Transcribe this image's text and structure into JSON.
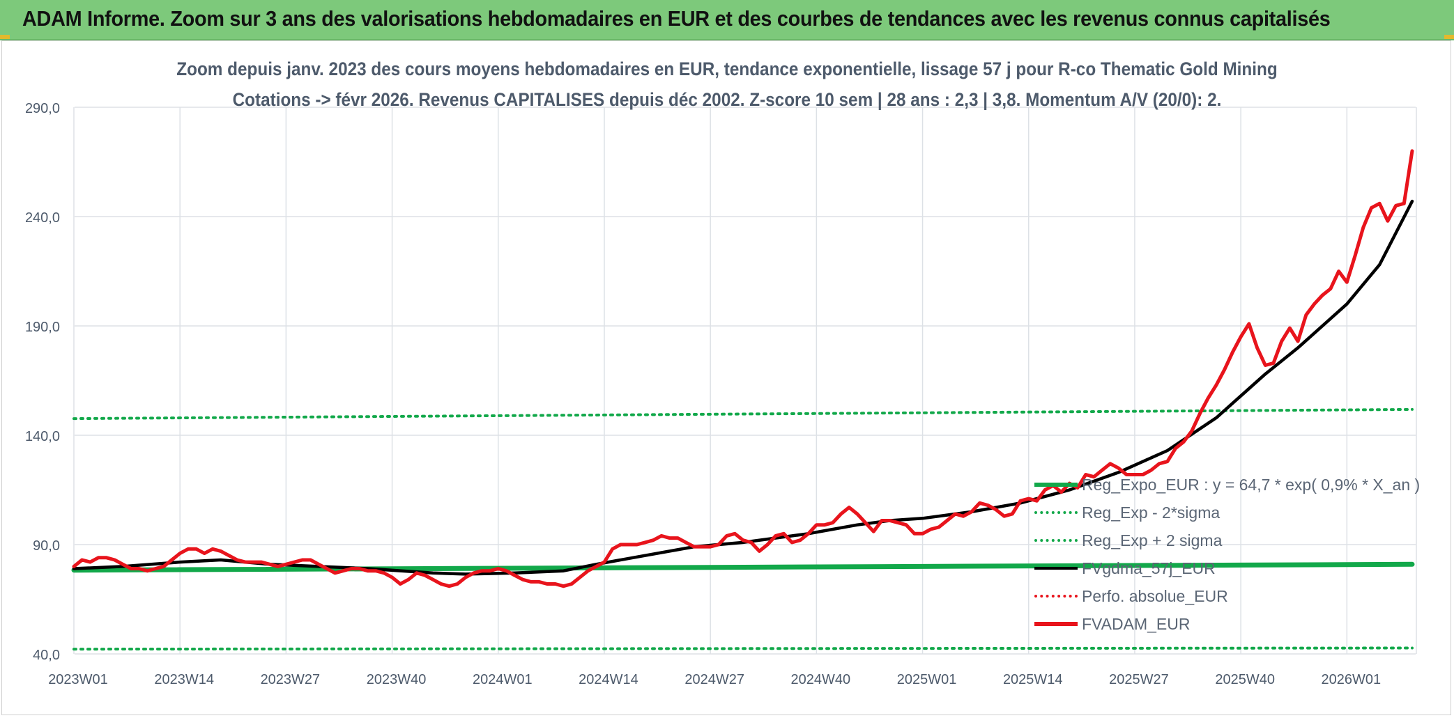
{
  "header": {
    "title": "ADAM Informe. Zoom sur 3 ans des valorisations hebdomadaires en EUR et des courbes de tendances avec les revenus connus capitalisés"
  },
  "colors": {
    "header_bg": "#7dc97b",
    "grid": "#dde1e6",
    "green": "#12a84a",
    "black": "#000000",
    "red": "#e8141c",
    "axis_text": "#4d5a6b"
  },
  "chart_data": {
    "type": "line",
    "title_line1": "Zoom depuis janv. 2023 des cours moyens hebdomadaires en EUR, tendance exponentielle, lissage 57 j pour R-co Thematic Gold Mining",
    "title_line2": "Cotations -> févr 2026. Revenus CAPITALISES depuis déc 2002. Z-score 10 sem | 28 ans : 2,3 | 3,8. Momentum A/V (20/0): 2.",
    "x_tick_labels": [
      "2023W01",
      "2023W14",
      "2023W27",
      "2023W40",
      "2024W01",
      "2024W14",
      "2024W27",
      "2024W40",
      "2025W01",
      "2025W14",
      "2025W27",
      "2025W40",
      "2026W01"
    ],
    "x_tick_weeks": [
      0,
      13,
      26,
      39,
      52,
      65,
      78,
      91,
      104,
      117,
      130,
      143,
      156
    ],
    "y_tick_labels": [
      "40,0",
      "90,0",
      "140,0",
      "190,0",
      "240,0",
      "290,0"
    ],
    "ylim": [
      40,
      290
    ],
    "x_count": 165,
    "legend": [
      {
        "label": "Reg_Expo_EUR : y = 64,7 * exp( 0,9% *  X_an )",
        "style": "solid-thick",
        "color": "#12a84a"
      },
      {
        "label": "Reg_Exp - 2*sigma",
        "style": "dotted",
        "color": "#12a84a"
      },
      {
        "label": "Reg_Exp + 2 sigma",
        "style": "dotted",
        "color": "#12a84a"
      },
      {
        "label": "FVgdma_57j_EUR",
        "style": "solid",
        "color": "#000000"
      },
      {
        "label": "Perfo. absolue_EUR",
        "style": "dotted",
        "color": "#e8141c"
      },
      {
        "label": "FVADAM_EUR",
        "style": "solid-thick",
        "color": "#e8141c"
      }
    ],
    "series": [
      {
        "name": "Reg_Expo_EUR",
        "color": "#12a84a",
        "points": [
          [
            0,
            78.3
          ],
          [
            164,
            81.0
          ]
        ]
      },
      {
        "name": "Reg_Exp - 2*sigma",
        "color": "#12a84a",
        "points": [
          [
            0,
            42.2
          ],
          [
            164,
            42.7
          ]
        ]
      },
      {
        "name": "Reg_Exp + 2 sigma",
        "color": "#12a84a",
        "points": [
          [
            0,
            147.6
          ],
          [
            164,
            151.8
          ]
        ]
      },
      {
        "name": "FVgdma_57j_EUR",
        "color": "#000000",
        "points": [
          [
            0,
            79
          ],
          [
            6,
            80
          ],
          [
            13,
            82
          ],
          [
            18,
            83
          ],
          [
            24,
            81
          ],
          [
            30,
            80
          ],
          [
            36,
            79
          ],
          [
            44,
            77
          ],
          [
            48,
            76.5
          ],
          [
            54,
            77
          ],
          [
            60,
            78
          ],
          [
            64,
            81
          ],
          [
            70,
            85
          ],
          [
            76,
            89
          ],
          [
            82,
            91
          ],
          [
            90,
            95
          ],
          [
            96,
            99
          ],
          [
            100,
            101
          ],
          [
            104,
            102
          ],
          [
            110,
            105
          ],
          [
            116,
            109
          ],
          [
            122,
            115
          ],
          [
            128,
            123
          ],
          [
            134,
            133
          ],
          [
            140,
            148
          ],
          [
            146,
            168
          ],
          [
            150,
            180
          ],
          [
            156,
            200
          ],
          [
            160,
            218
          ],
          [
            164,
            247
          ]
        ]
      },
      {
        "name": "FVADAM_EUR",
        "color": "#e8141c",
        "points": [
          [
            0,
            80
          ],
          [
            1,
            83
          ],
          [
            2,
            82
          ],
          [
            3,
            84
          ],
          [
            4,
            84
          ],
          [
            5,
            83
          ],
          [
            6,
            81
          ],
          [
            7,
            79
          ],
          [
            8,
            79
          ],
          [
            9,
            78
          ],
          [
            10,
            79
          ],
          [
            11,
            80
          ],
          [
            12,
            83
          ],
          [
            13,
            86
          ],
          [
            14,
            88
          ],
          [
            15,
            88
          ],
          [
            16,
            86
          ],
          [
            17,
            88
          ],
          [
            18,
            87
          ],
          [
            19,
            85
          ],
          [
            20,
            83
          ],
          [
            21,
            82
          ],
          [
            22,
            82
          ],
          [
            23,
            82
          ],
          [
            24,
            81
          ],
          [
            25,
            80
          ],
          [
            26,
            81
          ],
          [
            27,
            82
          ],
          [
            28,
            83
          ],
          [
            29,
            83
          ],
          [
            30,
            81
          ],
          [
            31,
            79
          ],
          [
            32,
            77
          ],
          [
            33,
            78
          ],
          [
            34,
            79
          ],
          [
            35,
            79
          ],
          [
            36,
            78
          ],
          [
            37,
            78
          ],
          [
            38,
            77
          ],
          [
            39,
            75
          ],
          [
            40,
            72
          ],
          [
            41,
            74
          ],
          [
            42,
            77
          ],
          [
            43,
            76
          ],
          [
            44,
            74
          ],
          [
            45,
            72
          ],
          [
            46,
            71
          ],
          [
            47,
            72
          ],
          [
            48,
            75
          ],
          [
            49,
            77
          ],
          [
            50,
            78
          ],
          [
            51,
            78
          ],
          [
            52,
            79
          ],
          [
            53,
            78
          ],
          [
            54,
            76
          ],
          [
            55,
            74
          ],
          [
            56,
            73
          ],
          [
            57,
            73
          ],
          [
            58,
            72
          ],
          [
            59,
            72
          ],
          [
            60,
            71
          ],
          [
            61,
            72
          ],
          [
            62,
            75
          ],
          [
            63,
            78
          ],
          [
            64,
            80
          ],
          [
            65,
            82
          ],
          [
            66,
            88
          ],
          [
            67,
            90
          ],
          [
            68,
            90
          ],
          [
            69,
            90
          ],
          [
            70,
            91
          ],
          [
            71,
            92
          ],
          [
            72,
            94
          ],
          [
            73,
            93
          ],
          [
            74,
            93
          ],
          [
            75,
            91
          ],
          [
            76,
            89
          ],
          [
            77,
            89
          ],
          [
            78,
            89
          ],
          [
            79,
            90
          ],
          [
            80,
            94
          ],
          [
            81,
            95
          ],
          [
            82,
            92
          ],
          [
            83,
            91
          ],
          [
            84,
            87
          ],
          [
            85,
            90
          ],
          [
            86,
            94
          ],
          [
            87,
            95
          ],
          [
            88,
            91
          ],
          [
            89,
            92
          ],
          [
            90,
            95
          ],
          [
            91,
            99
          ],
          [
            92,
            99
          ],
          [
            93,
            100
          ],
          [
            94,
            104
          ],
          [
            95,
            107
          ],
          [
            96,
            104
          ],
          [
            97,
            100
          ],
          [
            98,
            96
          ],
          [
            99,
            101
          ],
          [
            100,
            101
          ],
          [
            101,
            100
          ],
          [
            102,
            99
          ],
          [
            103,
            95
          ],
          [
            104,
            95
          ],
          [
            105,
            97
          ],
          [
            106,
            98
          ],
          [
            107,
            101
          ],
          [
            108,
            104
          ],
          [
            109,
            103
          ],
          [
            110,
            105
          ],
          [
            111,
            109
          ],
          [
            112,
            108
          ],
          [
            113,
            106
          ],
          [
            114,
            103
          ],
          [
            115,
            104
          ],
          [
            116,
            110
          ],
          [
            117,
            111
          ],
          [
            118,
            110
          ],
          [
            119,
            115
          ],
          [
            120,
            117
          ],
          [
            121,
            114
          ],
          [
            122,
            118
          ],
          [
            123,
            116
          ],
          [
            124,
            122
          ],
          [
            125,
            121
          ],
          [
            126,
            124
          ],
          [
            127,
            127
          ],
          [
            128,
            125
          ],
          [
            129,
            122
          ],
          [
            130,
            122
          ],
          [
            131,
            122
          ],
          [
            132,
            124
          ],
          [
            133,
            127
          ],
          [
            134,
            128
          ],
          [
            135,
            134
          ],
          [
            136,
            137
          ],
          [
            137,
            142
          ],
          [
            138,
            150
          ],
          [
            139,
            157
          ],
          [
            140,
            163
          ],
          [
            141,
            170
          ],
          [
            142,
            178
          ],
          [
            143,
            185
          ],
          [
            144,
            191
          ],
          [
            145,
            180
          ],
          [
            146,
            172
          ],
          [
            147,
            173
          ],
          [
            148,
            183
          ],
          [
            149,
            189
          ],
          [
            150,
            183
          ],
          [
            151,
            195
          ],
          [
            152,
            200
          ],
          [
            153,
            204
          ],
          [
            154,
            207
          ],
          [
            155,
            215
          ],
          [
            156,
            210
          ],
          [
            157,
            222
          ],
          [
            158,
            235
          ],
          [
            159,
            244
          ],
          [
            160,
            246
          ],
          [
            161,
            238
          ],
          [
            162,
            245
          ],
          [
            163,
            246
          ],
          [
            164,
            270
          ]
        ]
      }
    ]
  }
}
